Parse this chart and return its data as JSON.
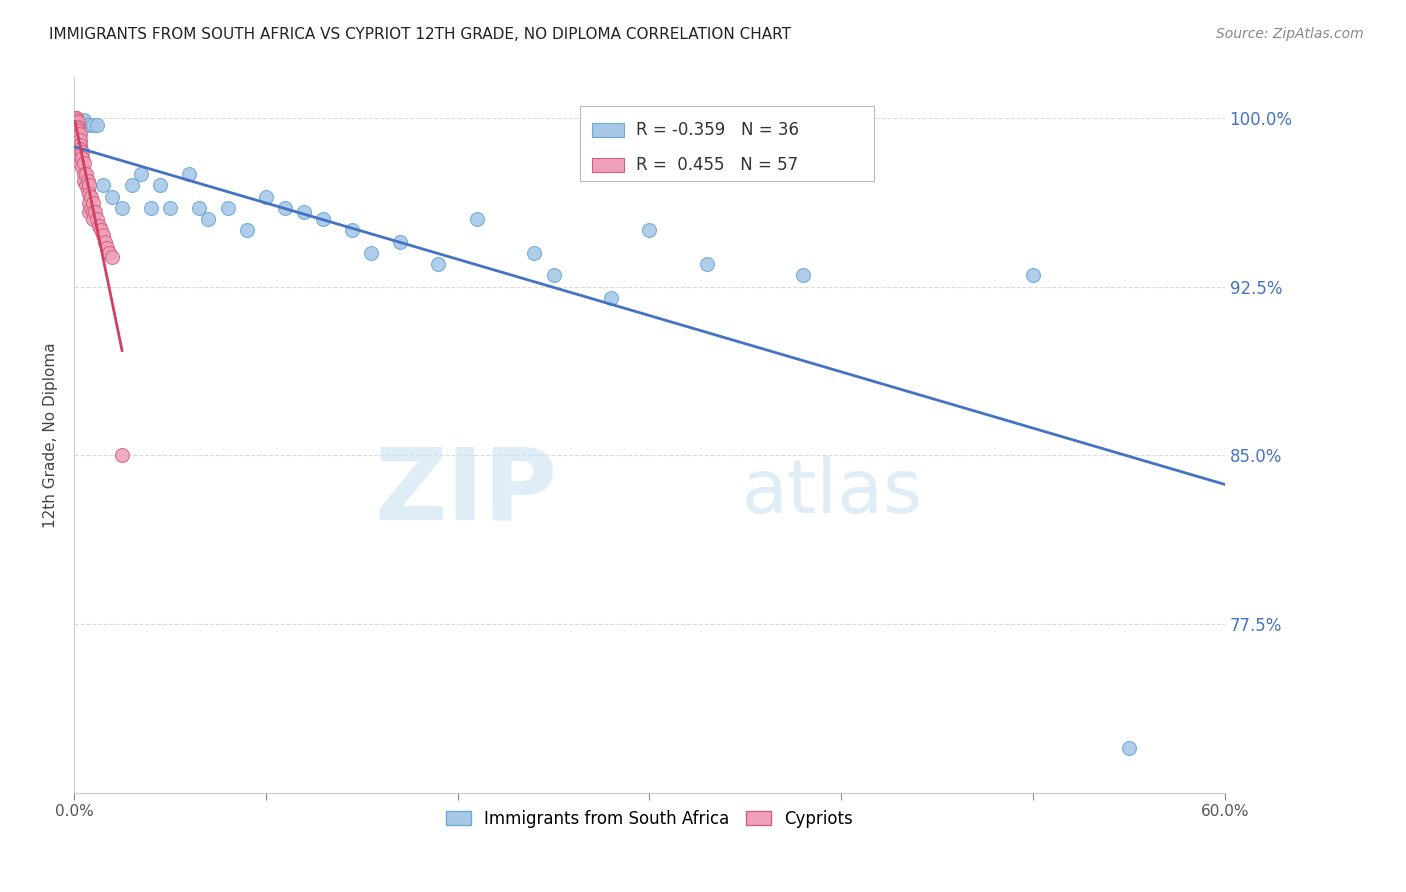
{
  "title": "IMMIGRANTS FROM SOUTH AFRICA VS CYPRIOT 12TH GRADE, NO DIPLOMA CORRELATION CHART",
  "source": "Source: ZipAtlas.com",
  "ylabel": "12th Grade, No Diploma",
  "x_min": 0.0,
  "x_max": 0.6,
  "y_min": 0.7,
  "y_max": 1.018,
  "y_tick_positions": [
    1.0,
    0.925,
    0.85,
    0.775
  ],
  "y_tick_labels": [
    "100.0%",
    "92.5%",
    "85.0%",
    "77.5%"
  ],
  "blue_color": "#a8c8e8",
  "blue_edge_color": "#6aaad4",
  "pink_color": "#f0a0b8",
  "pink_edge_color": "#d06080",
  "trend_blue_color": "#4472c4",
  "trend_pink_color": "#d04060",
  "legend_r_blue": "-0.359",
  "legend_n_blue": "36",
  "legend_r_pink": "0.455",
  "legend_n_pink": "57",
  "legend_label_blue": "Immigrants from South Africa",
  "legend_label_pink": "Cypriots",
  "watermark_zip": "ZIP",
  "watermark_atlas": "atlas",
  "grid_color": "#cccccc",
  "blue_scatter_x": [
    0.003,
    0.005,
    0.005,
    0.007,
    0.01,
    0.012,
    0.015,
    0.02,
    0.025,
    0.03,
    0.035,
    0.04,
    0.045,
    0.05,
    0.06,
    0.065,
    0.07,
    0.08,
    0.09,
    0.1,
    0.11,
    0.12,
    0.13,
    0.145,
    0.155,
    0.17,
    0.19,
    0.21,
    0.24,
    0.25,
    0.28,
    0.3,
    0.33,
    0.38,
    0.5,
    0.55
  ],
  "blue_scatter_y": [
    0.996,
    0.998,
    0.999,
    0.997,
    0.997,
    0.997,
    0.97,
    0.965,
    0.96,
    0.97,
    0.975,
    0.96,
    0.97,
    0.96,
    0.975,
    0.96,
    0.955,
    0.96,
    0.95,
    0.965,
    0.96,
    0.958,
    0.955,
    0.95,
    0.94,
    0.945,
    0.935,
    0.955,
    0.94,
    0.93,
    0.92,
    0.95,
    0.935,
    0.93,
    0.93,
    0.72
  ],
  "pink_scatter_x": [
    0.0005,
    0.0005,
    0.0005,
    0.001,
    0.001,
    0.001,
    0.001,
    0.001,
    0.001,
    0.001,
    0.001,
    0.001,
    0.002,
    0.002,
    0.002,
    0.002,
    0.002,
    0.002,
    0.002,
    0.002,
    0.002,
    0.003,
    0.003,
    0.003,
    0.003,
    0.003,
    0.003,
    0.003,
    0.004,
    0.004,
    0.004,
    0.005,
    0.005,
    0.005,
    0.006,
    0.006,
    0.007,
    0.007,
    0.008,
    0.008,
    0.008,
    0.008,
    0.009,
    0.009,
    0.01,
    0.01,
    0.01,
    0.011,
    0.012,
    0.013,
    0.014,
    0.015,
    0.016,
    0.017,
    0.018,
    0.02,
    0.025
  ],
  "pink_scatter_y": [
    1.0,
    1.0,
    0.999,
    1.0,
    1.0,
    0.999,
    0.998,
    0.997,
    0.997,
    0.996,
    0.995,
    0.994,
    0.998,
    0.996,
    0.995,
    0.994,
    0.993,
    0.992,
    0.99,
    0.988,
    0.985,
    0.993,
    0.99,
    0.988,
    0.986,
    0.984,
    0.982,
    0.98,
    0.985,
    0.982,
    0.978,
    0.98,
    0.975,
    0.972,
    0.975,
    0.97,
    0.972,
    0.968,
    0.97,
    0.966,
    0.962,
    0.958,
    0.965,
    0.96,
    0.962,
    0.958,
    0.955,
    0.958,
    0.955,
    0.952,
    0.95,
    0.948,
    0.945,
    0.942,
    0.94,
    0.938,
    0.85
  ]
}
